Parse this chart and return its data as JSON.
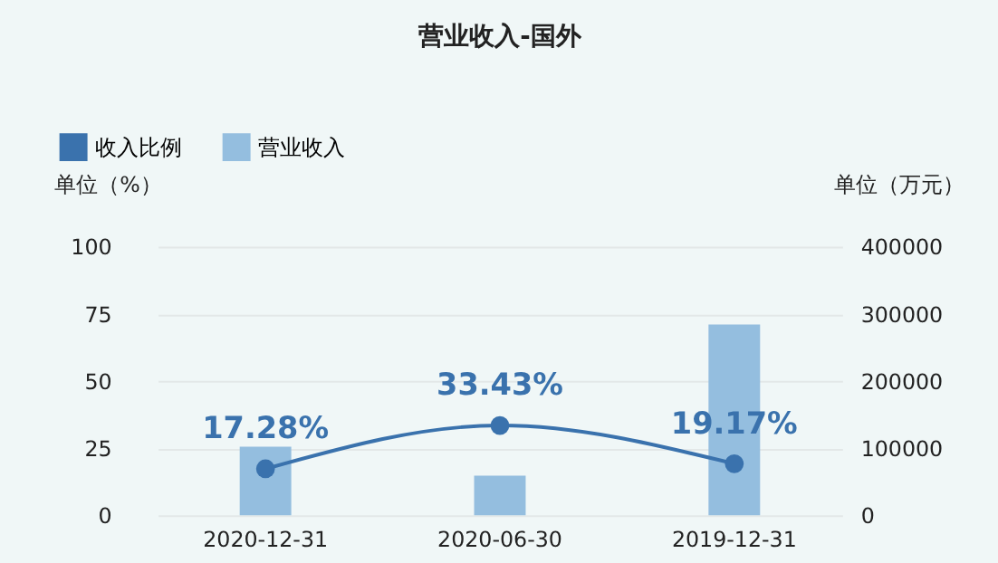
{
  "chart_data": {
    "type": "bar",
    "title": "营业收入-国外",
    "categories": [
      "2020-12-31",
      "2020-06-30",
      "2019-12-31"
    ],
    "series": [
      {
        "name": "收入比例",
        "type": "line",
        "color": "#3a72ad",
        "values": [
          17.28,
          33.43,
          19.17
        ],
        "value_labels": [
          "17.28%",
          "33.43%",
          "19.17%"
        ],
        "marker": "circle"
      },
      {
        "name": "营业收入",
        "axis": "y2",
        "color": "#94bedf",
        "values": [
          102000,
          59000,
          284000
        ]
      }
    ],
    "ylabel": "单位（%）",
    "y2label": "单位（万元）",
    "ylim": [
      0,
      100
    ],
    "yticks": [
      0,
      25,
      50,
      75,
      100
    ],
    "y2lim": [
      0,
      400000
    ],
    "y2ticks": [
      0,
      100000,
      200000,
      300000,
      400000
    ],
    "grid": "y",
    "legend": "top left"
  }
}
